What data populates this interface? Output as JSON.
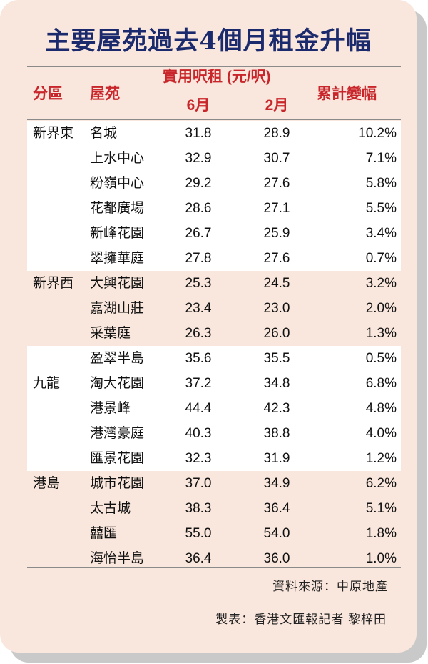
{
  "title": "主要屋苑過去4個月租金升幅",
  "headers": {
    "district": "分區",
    "estate": "屋苑",
    "rent_group": "實用呎租 (元/呎)",
    "june": "6月",
    "feb": "2月",
    "change": "累計變幅"
  },
  "regions": [
    {
      "name": "新界東",
      "rows": [
        {
          "estate": "名城",
          "jun": "31.8",
          "feb": "28.9",
          "change": "10.2%"
        },
        {
          "estate": "上水中心",
          "jun": "32.9",
          "feb": "30.7",
          "change": "7.1%"
        },
        {
          "estate": "粉嶺中心",
          "jun": "29.2",
          "feb": "27.6",
          "change": "5.8%"
        },
        {
          "estate": "花都廣場",
          "jun": "28.6",
          "feb": "27.1",
          "change": "5.5%"
        },
        {
          "estate": "新峰花園",
          "jun": "26.7",
          "feb": "25.9",
          "change": "3.4%"
        },
        {
          "estate": "翠擁華庭",
          "jun": "27.8",
          "feb": "27.6",
          "change": "0.7%"
        }
      ]
    },
    {
      "name": "新界西",
      "rows": [
        {
          "estate": "大興花園",
          "jun": "25.3",
          "feb": "24.5",
          "change": "3.2%"
        },
        {
          "estate": "嘉湖山莊",
          "jun": "23.4",
          "feb": "23.0",
          "change": "2.0%"
        },
        {
          "estate": "采葉庭",
          "jun": "26.3",
          "feb": "26.0",
          "change": "1.3%"
        }
      ]
    },
    {
      "name": "九龍",
      "rows": [
        {
          "estate": "盈翠半島",
          "jun": "35.6",
          "feb": "35.5",
          "change": "0.5%"
        },
        {
          "estate": "淘大花園",
          "jun": "37.2",
          "feb": "34.8",
          "change": "6.8%"
        },
        {
          "estate": "港景峰",
          "jun": "44.4",
          "feb": "42.3",
          "change": "4.8%"
        },
        {
          "estate": "港灣豪庭",
          "jun": "40.3",
          "feb": "38.8",
          "change": "4.0%"
        },
        {
          "estate": "匯景花園",
          "jun": "32.3",
          "feb": "31.9",
          "change": "1.2%"
        }
      ]
    },
    {
      "name": "港島",
      "rows": [
        {
          "estate": "城市花園",
          "jun": "37.0",
          "feb": "34.9",
          "change": "6.2%"
        },
        {
          "estate": "太古城",
          "jun": "38.3",
          "feb": "36.4",
          "change": "5.1%"
        },
        {
          "estate": "囍匯",
          "jun": "55.0",
          "feb": "54.0",
          "change": "1.8%"
        },
        {
          "estate": "海怡半島",
          "jun": "36.4",
          "feb": "36.0",
          "change": "1.0%"
        }
      ]
    }
  ],
  "source": "資料來源：中原地產",
  "credit": "製表：香港文匯報記者 黎梓田",
  "colors": {
    "title": "#1a2a6c",
    "header": "#c8262a",
    "card": "#f9e6dc"
  }
}
